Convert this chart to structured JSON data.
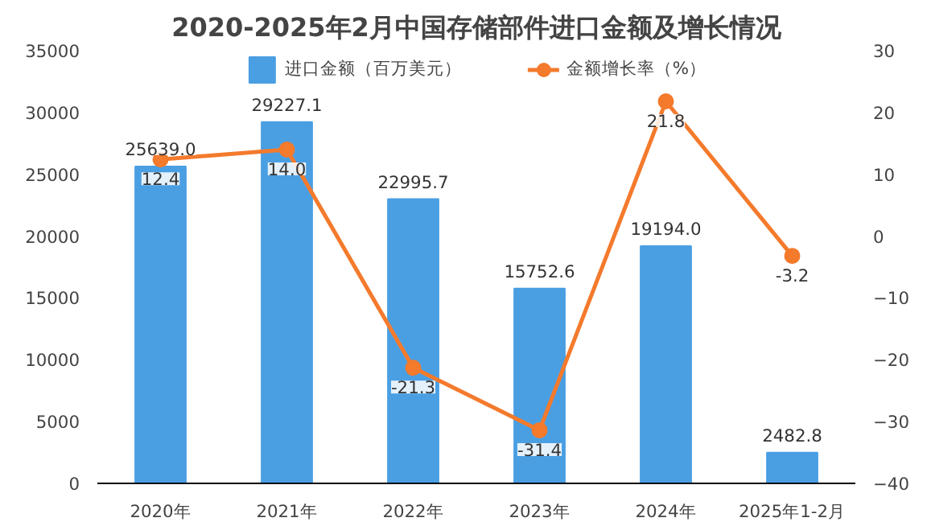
{
  "chart_data": {
    "type": "bar",
    "title": "2020-2025年2月中国存储部件进口金额及增长情况",
    "categories": [
      "2020年",
      "2021年",
      "2022年",
      "2023年",
      "2024年",
      "2025年1-2月"
    ],
    "series": [
      {
        "name": "进口金额（百万美元）",
        "color": "#4a9fe3",
        "values": [
          25639.0,
          29227.1,
          22995.7,
          15752.6,
          19194.0,
          2482.8
        ],
        "value_labels": [
          "25639.0",
          "29227.1",
          "22995.7",
          "15752.6",
          "19194.0",
          "2482.8"
        ]
      },
      {
        "name": "金额增长率（%）",
        "type": "line",
        "axis": "y2",
        "color": "#f47a2c",
        "values": [
          12.4,
          14.0,
          -21.3,
          -31.4,
          21.8,
          -3.2
        ],
        "value_labels": [
          "12.4",
          "14.0",
          "-21.3",
          "-31.4",
          "21.8",
          "-3.2"
        ]
      }
    ],
    "ylim": [
      0,
      35000
    ],
    "yticks": [
      0,
      5000,
      10000,
      15000,
      20000,
      25000,
      30000,
      35000
    ],
    "y2lim": [
      -40,
      30
    ],
    "y2ticks": [
      -40,
      -30,
      -20,
      -10,
      0,
      10,
      20,
      30
    ],
    "legend": "top",
    "marker": "circle",
    "line_style": "solid",
    "grid": false
  }
}
